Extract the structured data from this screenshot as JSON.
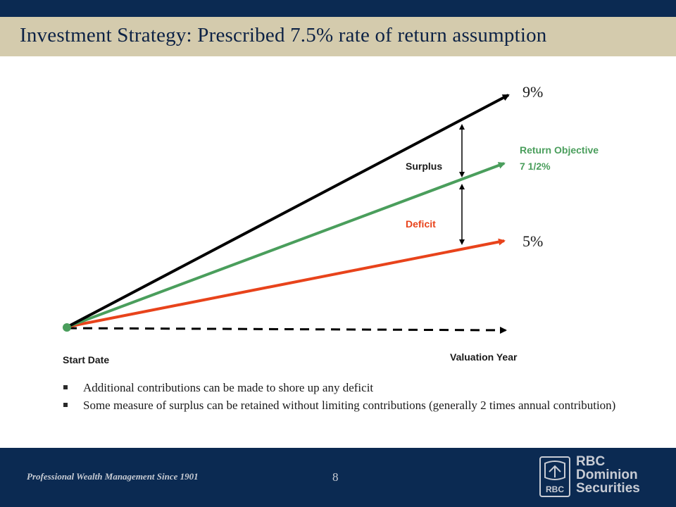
{
  "header": {
    "title": "Investment Strategy: Prescribed 7.5% rate of return assumption"
  },
  "diagram": {
    "labels": {
      "high_rate": "9%",
      "objective_line1": "Return Objective",
      "objective_line2": "7 1/2%",
      "surplus": "Surplus",
      "deficit": "Deficit",
      "low_rate": "5%",
      "start": "Start Date",
      "valuation": "Valuation Year"
    },
    "colors": {
      "high_line": "#000000",
      "objective_line": "#4a9e5c",
      "low_line": "#e8431b",
      "baseline": "#000000"
    }
  },
  "bullets": [
    "Additional contributions can be made to shore up any deficit",
    "Some measure of surplus can be retained without limiting contributions (generally 2 times annual contribution)"
  ],
  "footer": {
    "tagline": "Professional Wealth Management Since 1901",
    "page_number": "8",
    "brand_line1": "RBC",
    "brand_line2": "Dominion",
    "brand_line3": "Securities",
    "logo_text": "RBC"
  }
}
